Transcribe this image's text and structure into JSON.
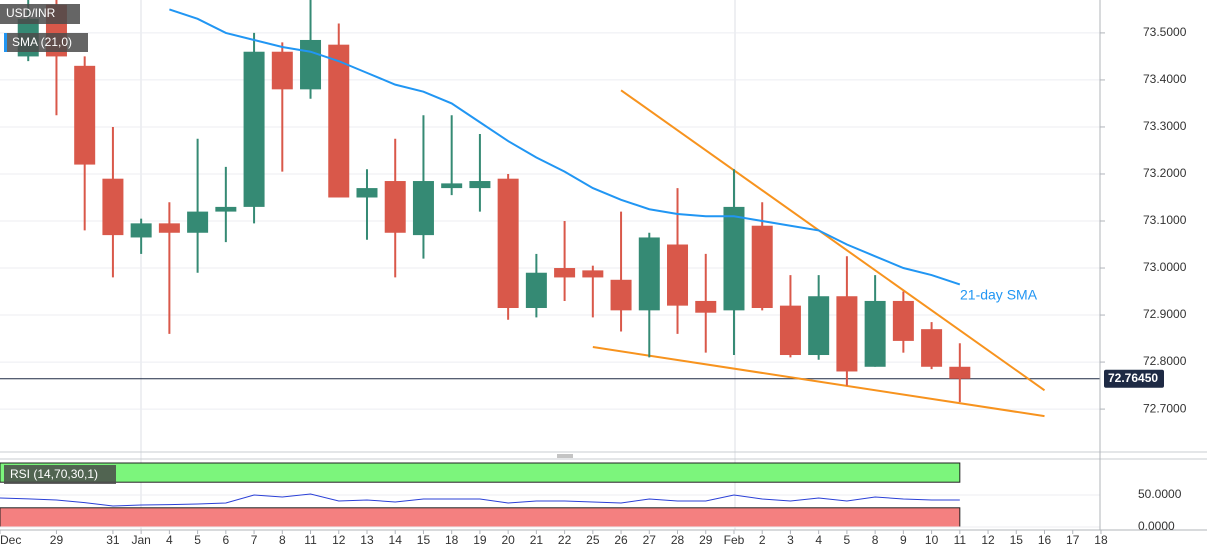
{
  "chart_data": {
    "type": "candlestick",
    "title": "USD/INR",
    "categories": [
      "Dec",
      null,
      "29",
      null,
      "31",
      "Jan",
      "4",
      "5",
      "6",
      "7",
      "8",
      "11",
      "12",
      "13",
      "14",
      "15",
      "18",
      "19",
      "20",
      "21",
      "22",
      "25",
      "26",
      "27",
      "28",
      "29",
      "Feb",
      "2",
      "3",
      "4",
      "5",
      "8",
      "9",
      "10",
      "11",
      "12",
      "15",
      "16",
      "17",
      "18"
    ],
    "open": [
      null,
      73.45,
      73.56,
      73.43,
      73.19,
      73.065,
      73.095,
      73.075,
      73.12,
      73.13,
      73.46,
      73.38,
      73.475,
      73.15,
      73.185,
      73.07,
      73.17,
      73.17,
      73.19,
      72.915,
      73.0,
      72.995,
      72.975,
      72.91,
      73.05,
      72.93,
      72.91,
      73.09,
      72.92,
      72.815,
      72.94,
      72.79,
      72.93,
      72.87,
      72.79,
      null,
      null,
      null,
      null,
      null
    ],
    "high": [
      null,
      73.57,
      73.57,
      73.45,
      73.3,
      73.105,
      73.14,
      73.275,
      73.215,
      73.5,
      73.48,
      73.57,
      73.52,
      73.21,
      73.275,
      73.325,
      73.325,
      73.285,
      73.2,
      73.03,
      73.1,
      73.005,
      73.12,
      73.075,
      73.17,
      73.03,
      73.21,
      73.14,
      72.985,
      72.985,
      73.025,
      72.985,
      72.95,
      72.885,
      72.84,
      null,
      null,
      null,
      null,
      null
    ],
    "low": [
      null,
      73.44,
      73.325,
      73.08,
      72.98,
      73.03,
      72.86,
      72.99,
      73.055,
      73.095,
      73.205,
      73.36,
      73.15,
      73.06,
      72.98,
      73.02,
      73.155,
      73.12,
      72.89,
      72.895,
      72.93,
      72.895,
      72.865,
      72.81,
      72.86,
      72.82,
      72.815,
      72.91,
      72.81,
      72.805,
      72.75,
      72.79,
      72.82,
      72.785,
      72.715,
      null,
      null,
      null,
      null,
      null
    ],
    "close": [
      null,
      73.53,
      73.45,
      73.22,
      73.07,
      73.095,
      73.075,
      73.12,
      73.13,
      73.46,
      73.38,
      73.485,
      73.15,
      73.17,
      73.075,
      73.185,
      73.18,
      73.185,
      72.915,
      72.99,
      72.98,
      72.98,
      72.91,
      73.065,
      72.92,
      72.905,
      73.13,
      72.915,
      72.815,
      72.94,
      72.78,
      72.93,
      72.845,
      72.79,
      72.7645,
      null,
      null,
      null,
      null,
      null
    ],
    "up_color": "#358a74",
    "down_color": "#d9584a",
    "series": [
      {
        "name": "SMA (21,0)",
        "color": "#2196f3",
        "values": [
          null,
          null,
          null,
          null,
          null,
          null,
          73.55,
          73.53,
          73.5,
          73.485,
          73.47,
          73.46,
          73.44,
          73.415,
          73.39,
          73.375,
          73.35,
          73.31,
          73.27,
          73.235,
          73.205,
          73.17,
          73.145,
          73.125,
          73.115,
          73.11,
          73.11,
          73.1,
          73.09,
          73.08,
          73.05,
          73.025,
          73.0,
          72.985,
          72.965,
          null,
          null,
          null,
          null,
          null
        ]
      }
    ],
    "annotations": [
      {
        "text": "21-day SMA",
        "color": "#2196f3"
      }
    ],
    "trendlines": [
      {
        "color": "#f7931e",
        "start_index": 22,
        "start_value": 73.378,
        "end_index": 37,
        "end_value": 72.74
      },
      {
        "color": "#f7931e",
        "start_index": 21,
        "start_value": 72.832,
        "end_index": 37,
        "end_value": 72.685
      }
    ],
    "last_value": 72.7645,
    "last_label": "72.76450",
    "ylim": [
      72.613,
      73.57
    ],
    "yticks": [
      {
        "value": 72.7,
        "label": "72.7000"
      },
      {
        "value": 72.8,
        "label": "72.8000"
      },
      {
        "value": 72.9,
        "label": "72.9000"
      },
      {
        "value": 73.0,
        "label": "73.0000"
      },
      {
        "value": 73.1,
        "label": "73.1000"
      },
      {
        "value": 73.2,
        "label": "73.2000"
      },
      {
        "value": 73.3,
        "label": "73.3000"
      },
      {
        "value": 73.4,
        "label": "73.4000"
      },
      {
        "value": 73.5,
        "label": "73.5000"
      }
    ],
    "grid": true,
    "rsi": {
      "name": "RSI (14,70,30,1)",
      "color": "#2a3fd6",
      "values": [
        45.3,
        44,
        42.2,
        38,
        32.8,
        34.4,
        35,
        35.9,
        37.5,
        50,
        46.9,
        51.6,
        40.6,
        42.2,
        39.1,
        43.8,
        43.8,
        43.8,
        37.5,
        40.6,
        40.6,
        39.1,
        37.5,
        43.8,
        40.6,
        40.6,
        50,
        43.8,
        40.6,
        45.3,
        40.6,
        46.9,
        43.8,
        42.2,
        42.2,
        null,
        null,
        null,
        null,
        null
      ],
      "overbought": 70,
      "oversold": 30,
      "top": 100,
      "overbought_color": "#7cf57c",
      "oversold_color": "#f48080",
      "ylim": [
        0,
        104.7
      ],
      "yticks": [
        {
          "value": 0,
          "label": "0.0000"
        },
        {
          "value": 50,
          "label": "50.0000"
        }
      ]
    }
  }
}
